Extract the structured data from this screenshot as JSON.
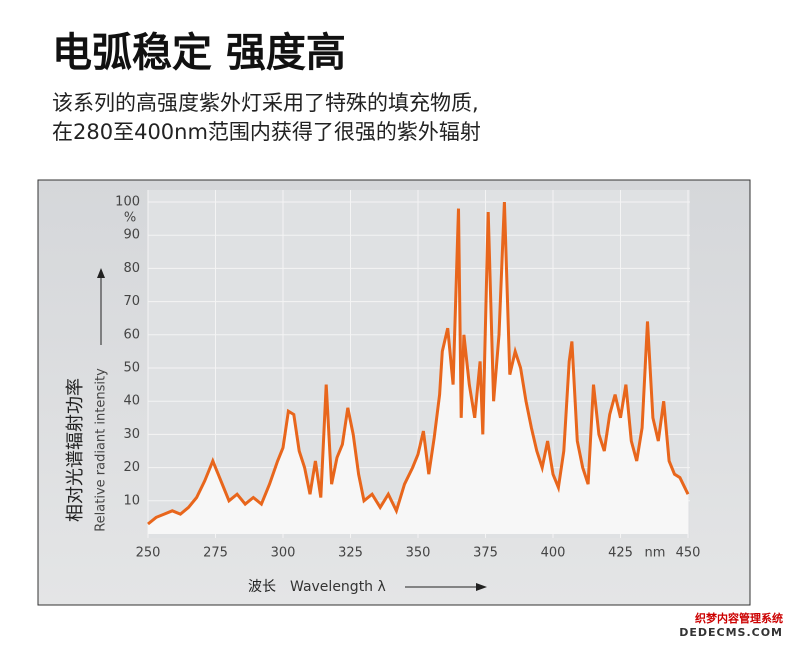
{
  "header": {
    "title": "电弧稳定 强度高",
    "subtitle_lines": [
      "该系列的高强度紫外灯采用了特殊的填充物质,",
      "在280至400nm范围内获得了很强的紫外辐射"
    ]
  },
  "chart_data": {
    "type": "line",
    "color": "#e8661c",
    "grid": true,
    "y_label_cn": "相对光谱辐射功率",
    "y_label_en": "Relative radiant intensity",
    "y_unit": "%",
    "x_label_cn": "波长",
    "x_label_en": "Wavelength λ",
    "x_unit": "nm",
    "xlim": [
      250,
      450
    ],
    "xticks": [
      250,
      275,
      300,
      325,
      350,
      375,
      400,
      425,
      450
    ],
    "ylim": [
      0,
      100
    ],
    "yticks": [
      10,
      20,
      30,
      40,
      50,
      60,
      70,
      80,
      90,
      100
    ],
    "x": [
      250,
      253,
      256,
      259,
      262,
      265,
      268,
      271,
      274,
      276,
      278,
      280,
      283,
      286,
      289,
      292,
      295,
      298,
      300,
      302,
      304,
      306,
      308,
      310,
      312,
      314,
      316,
      318,
      320,
      322,
      324,
      326,
      328,
      330,
      333,
      336,
      339,
      342,
      345,
      348,
      350,
      352,
      354,
      356,
      358,
      359,
      361,
      363,
      365,
      366,
      367,
      369,
      371,
      373,
      374,
      376,
      378,
      380,
      382,
      384,
      386,
      388,
      390,
      392,
      394,
      396,
      398,
      400,
      402,
      404,
      406,
      407,
      409,
      411,
      413,
      415,
      417,
      419,
      421,
      423,
      425,
      427,
      429,
      431,
      433,
      435,
      437,
      439,
      441,
      443,
      445,
      447,
      450
    ],
    "values": [
      3,
      5,
      6,
      7,
      6,
      8,
      11,
      16,
      22,
      18,
      14,
      10,
      12,
      9,
      11,
      9,
      15,
      22,
      26,
      37,
      36,
      25,
      20,
      12,
      22,
      11,
      45,
      15,
      23,
      27,
      38,
      30,
      18,
      10,
      12,
      8,
      12,
      7,
      15,
      20,
      24,
      31,
      18,
      29,
      42,
      55,
      62,
      45,
      98,
      35,
      60,
      45,
      35,
      52,
      30,
      97,
      40,
      60,
      100,
      48,
      55,
      50,
      40,
      32,
      25,
      20,
      28,
      18,
      14,
      25,
      52,
      58,
      28,
      20,
      15,
      45,
      30,
      25,
      36,
      42,
      35,
      45,
      28,
      22,
      32,
      64,
      35,
      28,
      40,
      22,
      18,
      17,
      12
    ]
  },
  "watermark": {
    "line1": "织梦内容管理系统",
    "line2": "DEDECMS.COM"
  }
}
